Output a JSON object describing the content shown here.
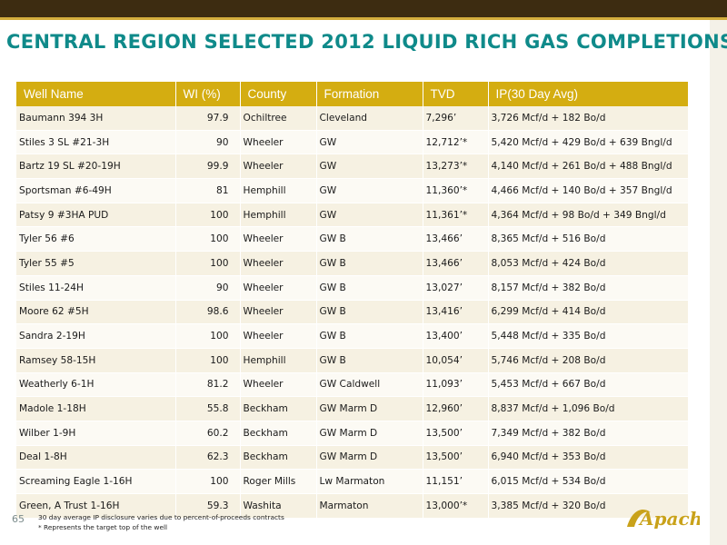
{
  "title": "CENTRAL REGION SELECTED 2012 LIQUID RICH GAS COMPLETIONS",
  "colors": {
    "header_bar": "#3d2c11",
    "accent": "#d4ad3d",
    "title": "#0f8a8a",
    "table_header": "#d4ad11"
  },
  "table": {
    "headers": [
      "Well Name",
      "WI  (%)",
      "County",
      "Formation",
      "TVD",
      "IP(30 Day Avg)"
    ],
    "rows": [
      [
        "Baumann 394 3H",
        "97.9",
        "Ochiltree",
        "Cleveland",
        "7,296’",
        "3,726 Mcf/d + 182 Bo/d"
      ],
      [
        "Stiles 3 SL #21-3H",
        "90",
        "Wheeler",
        "GW",
        "12,712’*",
        "5,420 Mcf/d + 429 Bo/d + 639 Bngl/d"
      ],
      [
        "Bartz 19 SL #20-19H",
        "99.9",
        "Wheeler",
        "GW",
        "13,273’*",
        "4,140 Mcf/d + 261 Bo/d + 488 Bngl/d"
      ],
      [
        "Sportsman #6-49H",
        "81",
        "Hemphill",
        "GW",
        "11,360’*",
        "4,466 Mcf/d + 140 Bo/d + 357 Bngl/d"
      ],
      [
        "Patsy 9 #3HA PUD",
        "100",
        "Hemphill",
        "GW",
        "11,361’*",
        "4,364 Mcf/d + 98 Bo/d + 349 Bngl/d"
      ],
      [
        "Tyler 56 #6",
        "100",
        "Wheeler",
        "GW B",
        "13,466’",
        "8,365 Mcf/d + 516 Bo/d"
      ],
      [
        "Tyler 55 #5",
        "100",
        "Wheeler",
        "GW B",
        "13,466’",
        "8,053 Mcf/d + 424 Bo/d"
      ],
      [
        "Stiles 11-24H",
        "90",
        "Wheeler",
        "GW B",
        "13,027’",
        "8,157 Mcf/d + 382 Bo/d"
      ],
      [
        "Moore 62 #5H",
        "98.6",
        "Wheeler",
        "GW B",
        "13,416’",
        "6,299 Mcf/d + 414 Bo/d"
      ],
      [
        "Sandra 2-19H",
        "100",
        "Wheeler",
        "GW B",
        "13,400’",
        "5,448 Mcf/d + 335 Bo/d"
      ],
      [
        "Ramsey 58-15H",
        "100",
        "Hemphill",
        "GW B",
        "10,054’",
        "5,746 Mcf/d + 208 Bo/d"
      ],
      [
        "Weatherly 6-1H",
        "81.2",
        "Wheeler",
        "GW Caldwell",
        "11,093’",
        "5,453 Mcf/d  + 667 Bo/d"
      ],
      [
        "Madole 1-18H",
        "55.8",
        "Beckham",
        "GW Marm D",
        "12,960’",
        "8,837 Mcf/d + 1,096 Bo/d"
      ],
      [
        "Wilber 1-9H",
        "60.2",
        "Beckham",
        "GW Marm D",
        "13,500’",
        "7,349 Mcf/d + 382 Bo/d"
      ],
      [
        "Deal 1-8H",
        "62.3",
        "Beckham",
        "GW Marm D",
        "13,500’",
        "6,940 Mcf/d + 353 Bo/d"
      ],
      [
        "Screaming Eagle 1-16H",
        "100",
        "Roger Mills",
        "Lw Marmaton",
        "11,151’",
        "6,015 Mcf/d + 534 Bo/d"
      ],
      [
        "Green, A Trust 1-16H",
        "59.3",
        "Washita",
        "Marmaton",
        "13,000’*",
        "3,385 Mcf/d + 320 Bo/d"
      ]
    ]
  },
  "footer": {
    "page_number": "65",
    "note1": "30 day average IP disclosure varies due to percent-of-proceeds contracts",
    "note2": "* Represents the target top of the well",
    "logo": "Apache"
  }
}
